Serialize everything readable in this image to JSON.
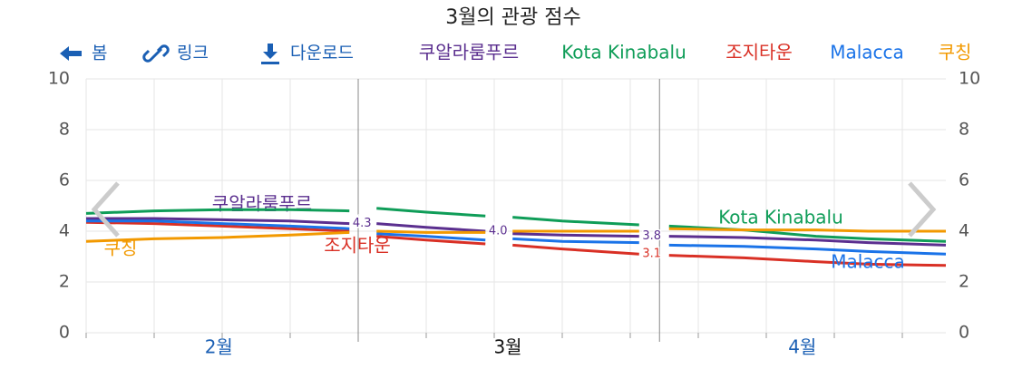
{
  "header": {
    "back": "봄",
    "link": "링크",
    "download": "다운로드"
  },
  "chart_data": {
    "type": "line",
    "title": "3월의 관광 점수",
    "x": [
      0,
      1,
      2,
      3,
      3.87,
      4.07,
      4.27,
      5,
      5.87,
      6.07,
      6.27,
      7,
      8.13,
      8.35,
      8.57,
      9.67,
      10.73,
      11.5,
      12.64
    ],
    "xlim": [
      0,
      12.64
    ],
    "xticks": [
      {
        "value": 1.95,
        "label": "2월"
      },
      {
        "value": 6.2,
        "label": "3월"
      },
      {
        "value": 10.53,
        "label": "4월"
      }
    ],
    "selected_xtick": 1,
    "xminor": [
      0,
      1,
      2,
      3,
      4,
      5,
      6,
      7,
      8,
      9,
      10,
      11,
      12
    ],
    "period_lines": [
      4,
      8.43
    ],
    "ylim": [
      0,
      10
    ],
    "yticks": [
      0,
      2,
      4,
      6,
      8,
      10
    ],
    "grid": true,
    "series": [
      {
        "name": "쿠알라룸푸르",
        "color": "#5b2f8f",
        "values": [
          4.5,
          4.5,
          4.45,
          4.4,
          4.3,
          null,
          4.3,
          4.15,
          4.0,
          null,
          3.9,
          3.85,
          3.8,
          null,
          3.8,
          3.75,
          3.65,
          3.55,
          3.45
        ],
        "value_labels": [
          null,
          null,
          null,
          null,
          "4.3",
          null,
          null,
          null,
          "4.0",
          null,
          null,
          null,
          "3.8",
          null,
          null,
          null,
          null,
          null,
          null
        ]
      },
      {
        "name": "Kota Kinabalu",
        "color": "#0f9d58",
        "values": [
          4.7,
          4.8,
          4.85,
          4.85,
          4.8,
          null,
          4.9,
          4.75,
          4.6,
          null,
          4.55,
          4.4,
          4.25,
          null,
          4.2,
          4.05,
          3.8,
          3.7,
          3.6
        ]
      },
      {
        "name": "조지타운",
        "color": "#d93025",
        "values": [
          4.35,
          4.3,
          4.2,
          4.1,
          4.0,
          null,
          3.8,
          3.65,
          3.5,
          null,
          3.45,
          3.3,
          3.1,
          null,
          3.05,
          2.95,
          2.8,
          2.7,
          2.65
        ],
        "value_labels": [
          null,
          null,
          null,
          null,
          null,
          null,
          null,
          null,
          null,
          null,
          null,
          null,
          "3.1",
          null,
          null,
          null,
          null,
          null,
          null
        ]
      },
      {
        "name": "Malacca",
        "color": "#1a73e8",
        "values": [
          4.4,
          4.4,
          4.3,
          4.2,
          4.1,
          null,
          3.9,
          3.8,
          3.65,
          null,
          3.7,
          3.6,
          3.55,
          null,
          3.45,
          3.4,
          3.3,
          3.2,
          3.1
        ]
      },
      {
        "name": "쿠칭",
        "color": "#f29900",
        "values": [
          3.6,
          3.7,
          3.75,
          3.85,
          3.95,
          null,
          4.0,
          3.95,
          3.95,
          null,
          4.0,
          4.0,
          4.0,
          null,
          4.1,
          4.05,
          4.05,
          4.0,
          4.0
        ]
      }
    ]
  }
}
